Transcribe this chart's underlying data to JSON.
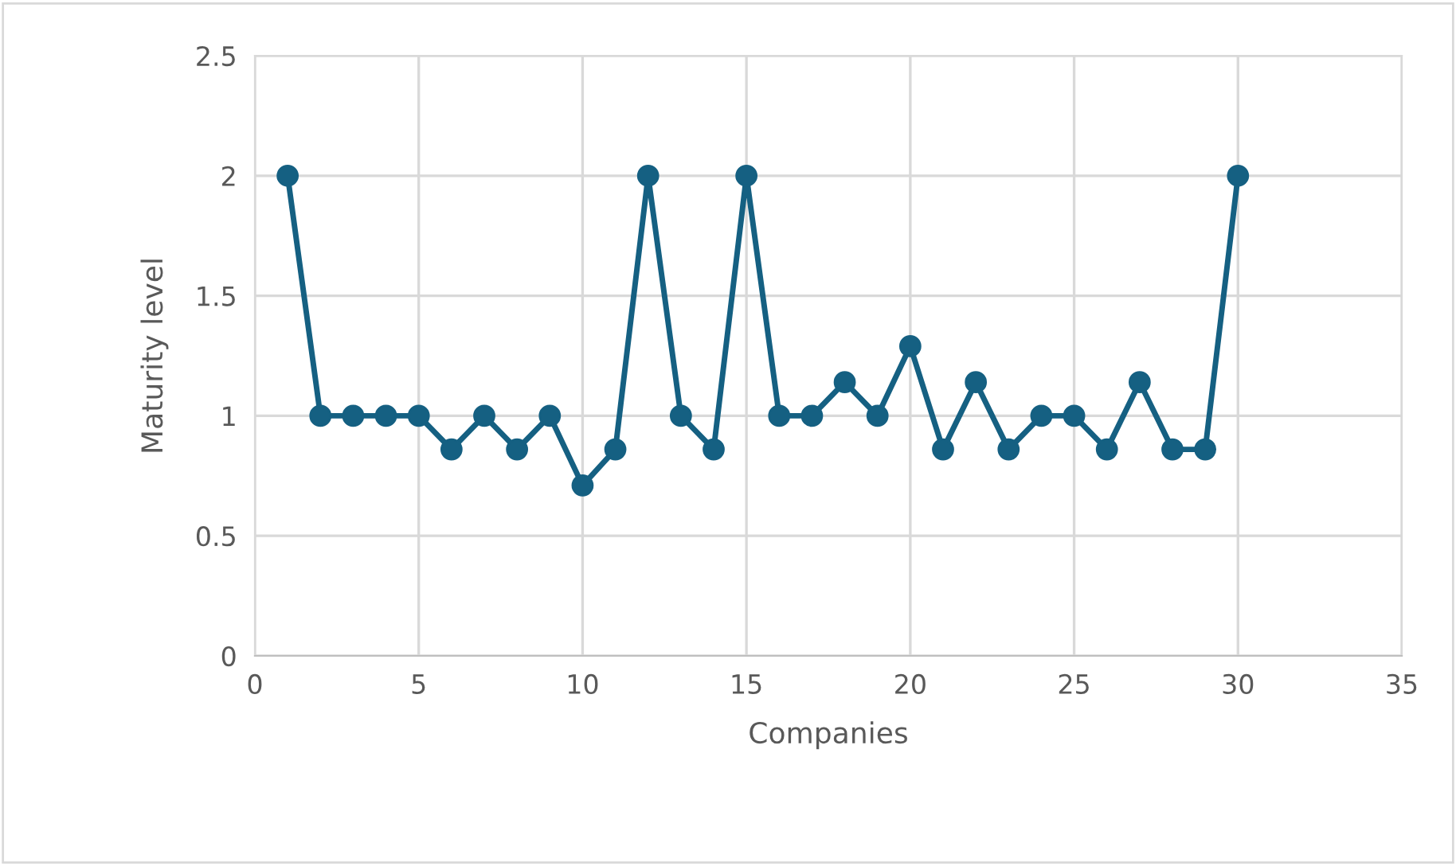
{
  "chart_data": {
    "type": "line",
    "xlabel": "Companies",
    "ylabel": "Maturity level",
    "x": [
      1,
      2,
      3,
      4,
      5,
      6,
      7,
      8,
      9,
      10,
      11,
      12,
      13,
      14,
      15,
      16,
      17,
      18,
      19,
      20,
      21,
      22,
      23,
      24,
      25,
      26,
      27,
      28,
      29,
      30
    ],
    "series": [
      {
        "color": "#156082",
        "values": [
          2,
          1,
          1,
          1,
          1,
          0.86,
          1,
          0.86,
          1,
          0.71,
          0.86,
          2,
          1,
          0.86,
          2,
          1,
          1,
          1.14,
          1,
          1.29,
          0.86,
          1.14,
          0.86,
          1,
          1,
          0.86,
          1.14,
          0.86,
          0.86,
          2
        ]
      }
    ],
    "xlim": [
      0,
      35
    ],
    "xticks": [
      0,
      5,
      10,
      15,
      20,
      25,
      30,
      35
    ],
    "ylim": [
      0,
      2.5
    ],
    "yticks": [
      0,
      0.5,
      1,
      1.5,
      2,
      2.5
    ],
    "grid": true,
    "legend": false,
    "marker": "circle",
    "line_style": "solid"
  }
}
